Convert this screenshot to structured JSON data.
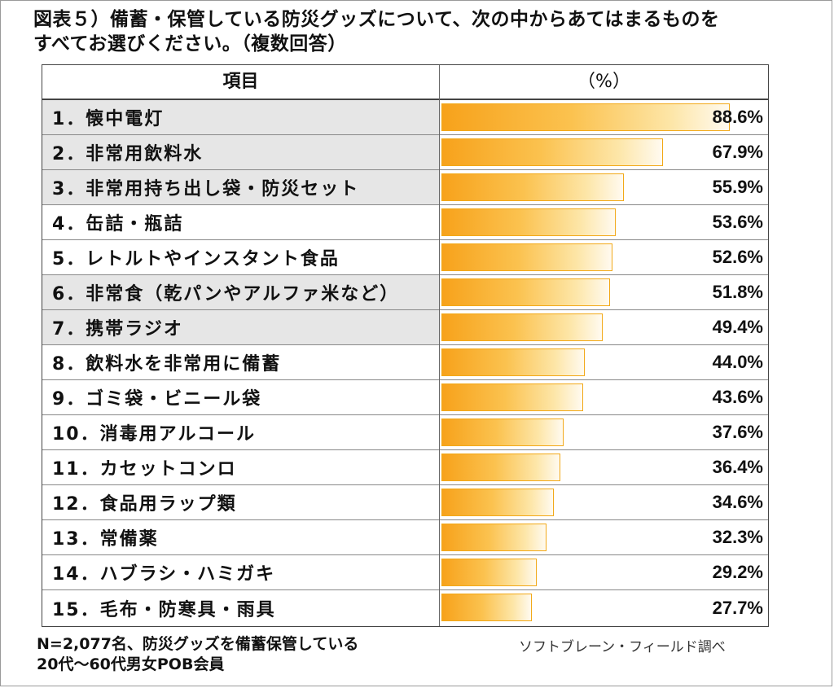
{
  "title": {
    "line1": "図表５）備蓄・保管している防災グッズについて、次の中からあてはまるものを",
    "line2": "すべてお選びください。（複数回答）"
  },
  "table": {
    "header_item": "項目",
    "header_pct": "（%）"
  },
  "chart_data": {
    "type": "bar",
    "orientation": "horizontal",
    "title": "図表５）備蓄・保管している防災グッズについて、次の中からあてはまるものをすべてお選びください。（複数回答）",
    "unit": "（%）",
    "xlim": [
      0,
      100
    ],
    "categories": [
      "1．懐中電灯",
      "2．非常用飲料水",
      "3．非常用持ち出し袋・防災セット",
      "4．缶詰・瓶詰",
      "5．レトルトやインスタント食品",
      "6．非常食（乾パンやアルファ米など）",
      "7．携帯ラジオ",
      "8．飲料水を非常用に備蓄",
      "9．ゴミ袋・ビニール袋",
      "10．消毒用アルコール",
      "11．カセットコンロ",
      "12．食品用ラップ類",
      "13．常備薬",
      "14．ハブラシ・ハミガキ",
      "15．毛布・防寒具・雨具"
    ],
    "values": [
      88.6,
      67.9,
      55.9,
      53.6,
      52.6,
      51.8,
      49.4,
      44.0,
      43.6,
      37.6,
      36.4,
      34.6,
      32.3,
      29.2,
      27.7
    ],
    "value_labels": [
      "88.6%",
      "67.9%",
      "55.9%",
      "53.6%",
      "52.6%",
      "51.8%",
      "49.4%",
      "44.0%",
      "43.6%",
      "37.6%",
      "36.4%",
      "34.6%",
      "32.3%",
      "29.2%",
      "27.7%"
    ],
    "shaded_rows": [
      true,
      true,
      true,
      false,
      false,
      true,
      true,
      false,
      false,
      false,
      false,
      false,
      false,
      false,
      false
    ]
  },
  "colors": {
    "bar_start": "#f7a21b",
    "bar_end": "#fffaf0",
    "bar_border": "#f2a817",
    "row_shade": "#e6e6e6"
  },
  "footer": {
    "line1": "N=2,077名、防災グッズを備蓄保管している",
    "line2": "20代～60代男女POB会員",
    "credit": "ソフトブレーン・フィールド調べ"
  }
}
